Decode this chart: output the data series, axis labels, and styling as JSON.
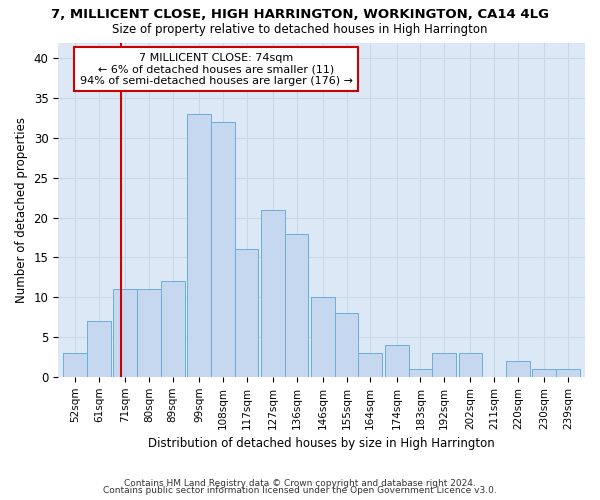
{
  "title1": "7, MILLICENT CLOSE, HIGH HARRINGTON, WORKINGTON, CA14 4LG",
  "title2": "Size of property relative to detached houses in High Harrington",
  "xlabel": "Distribution of detached houses by size in High Harrington",
  "ylabel": "Number of detached properties",
  "categories": [
    "52sqm",
    "61sqm",
    "71sqm",
    "80sqm",
    "89sqm",
    "99sqm",
    "108sqm",
    "117sqm",
    "127sqm",
    "136sqm",
    "146sqm",
    "155sqm",
    "164sqm",
    "174sqm",
    "183sqm",
    "192sqm",
    "202sqm",
    "211sqm",
    "220sqm",
    "230sqm",
    "239sqm"
  ],
  "values": [
    3,
    7,
    11,
    11,
    12,
    33,
    32,
    16,
    21,
    18,
    10,
    8,
    3,
    4,
    1,
    3,
    3,
    0,
    2,
    1,
    1
  ],
  "gaps_after": [
    11,
    17
  ],
  "bar_color": "#c5d8f0",
  "bar_edge_color": "#6aaed6",
  "vline_color": "#cc0000",
  "annotation_text": "7 MILLICENT CLOSE: 74sqm\n← 6% of detached houses are smaller (11)\n94% of semi-detached houses are larger (176) →",
  "annotation_box_color": "#ffffff",
  "annotation_box_edge_color": "#cc0000",
  "ylim": [
    0,
    42
  ],
  "yticks": [
    0,
    5,
    10,
    15,
    20,
    25,
    30,
    35,
    40
  ],
  "footer1": "Contains HM Land Registry data © Crown copyright and database right 2024.",
  "footer2": "Contains public sector information licensed under the Open Government Licence v3.0.",
  "bg_color": "#ffffff",
  "plot_bg_color": "#dce8f5",
  "grid_color": "#c8d8e8"
}
